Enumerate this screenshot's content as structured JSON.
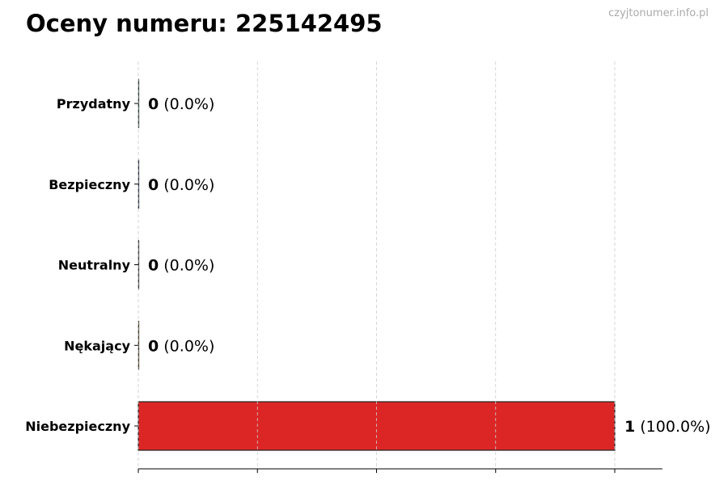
{
  "title": "Oceny numeru: 225142495",
  "watermark": "czyjtonumer.info.pl",
  "chart_data": {
    "type": "bar",
    "orientation": "horizontal",
    "title": "Oceny numeru: 225142495",
    "categories": [
      "Przydatny",
      "Bezpieczny",
      "Neutralny",
      "Nękający",
      "Niebezpieczny"
    ],
    "values": [
      0,
      0,
      0,
      0,
      1
    ],
    "data_labels": [
      {
        "count": "0",
        "percent": "(0.0%)"
      },
      {
        "count": "0",
        "percent": "(0.0%)"
      },
      {
        "count": "0",
        "percent": "(0.0%)"
      },
      {
        "count": "0",
        "percent": "(0.0%)"
      },
      {
        "count": "1",
        "percent": "(100.0%)"
      }
    ],
    "bar_colors": [
      "#22c55e",
      "#3b82f6",
      "#9ca3af",
      "#f59e0b",
      "#dc2626"
    ],
    "xlim": [
      0,
      1.1
    ],
    "x_gridlines": [
      0,
      0.25,
      0.5,
      0.75,
      1.0
    ],
    "grid": true,
    "xlabel": "",
    "ylabel": ""
  }
}
